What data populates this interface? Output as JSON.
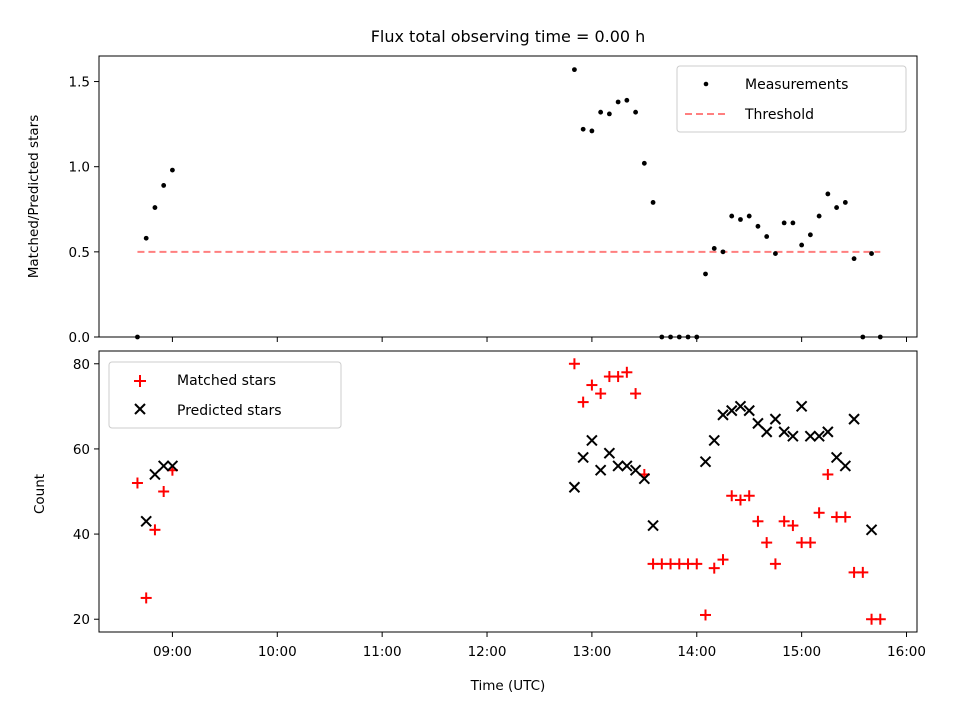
{
  "chart_data": [
    {
      "type": "scatter",
      "title": "Flux total observing time = 0.00 h",
      "xlabel": "",
      "ylabel": "Matched/Predicted stars",
      "xlim": [
        "08:18",
        "16:06"
      ],
      "ylim": [
        0,
        1.65
      ],
      "yticks": [
        0.0,
        0.5,
        1.0,
        1.5
      ],
      "ytick_labels": [
        "0.0",
        "0.5",
        "1.0",
        "1.5"
      ],
      "legend_position": "top-right",
      "series": [
        {
          "name": "Measurements",
          "marker": "dot",
          "color": "#000000",
          "points": [
            [
              "08:40",
              0.0
            ],
            [
              "08:45",
              0.58
            ],
            [
              "08:50",
              0.76
            ],
            [
              "08:55",
              0.89
            ],
            [
              "09:00",
              0.98
            ],
            [
              "12:50",
              1.57
            ],
            [
              "12:55",
              1.22
            ],
            [
              "13:00",
              1.21
            ],
            [
              "13:05",
              1.32
            ],
            [
              "13:10",
              1.31
            ],
            [
              "13:15",
              1.38
            ],
            [
              "13:20",
              1.39
            ],
            [
              "13:25",
              1.32
            ],
            [
              "13:30",
              1.02
            ],
            [
              "13:35",
              0.79
            ],
            [
              "13:40",
              0.0
            ],
            [
              "13:45",
              0.0
            ],
            [
              "13:50",
              0.0
            ],
            [
              "13:55",
              0.0
            ],
            [
              "14:00",
              0.0
            ],
            [
              "14:05",
              0.37
            ],
            [
              "14:10",
              0.52
            ],
            [
              "14:15",
              0.5
            ],
            [
              "14:20",
              0.71
            ],
            [
              "14:25",
              0.69
            ],
            [
              "14:30",
              0.71
            ],
            [
              "14:35",
              0.65
            ],
            [
              "14:40",
              0.59
            ],
            [
              "14:45",
              0.49
            ],
            [
              "14:50",
              0.67
            ],
            [
              "14:55",
              0.67
            ],
            [
              "15:00",
              0.54
            ],
            [
              "15:05",
              0.6
            ],
            [
              "15:10",
              0.71
            ],
            [
              "15:15",
              0.84
            ],
            [
              "15:20",
              0.76
            ],
            [
              "15:25",
              0.79
            ],
            [
              "15:30",
              0.46
            ],
            [
              "15:35",
              0.0
            ],
            [
              "15:40",
              0.49
            ],
            [
              "15:45",
              0.0
            ]
          ]
        },
        {
          "name": "Threshold",
          "type": "line",
          "style": "dashed",
          "color": "#ff7f7f",
          "points": [
            [
              "08:40",
              0.5
            ],
            [
              "15:45",
              0.5
            ]
          ]
        }
      ]
    },
    {
      "type": "scatter",
      "title": "",
      "xlabel": "Time (UTC)",
      "ylabel": "Count",
      "xlim": [
        "08:18",
        "16:06"
      ],
      "ylim": [
        17,
        83
      ],
      "yticks": [
        20,
        40,
        60,
        80
      ],
      "ytick_labels": [
        "20",
        "40",
        "60",
        "80"
      ],
      "xticks": [
        "09:00",
        "10:00",
        "11:00",
        "12:00",
        "13:00",
        "14:00",
        "15:00",
        "16:00"
      ],
      "legend_position": "top-left",
      "series": [
        {
          "name": "Matched stars",
          "marker": "plus",
          "color": "#ff0000",
          "points": [
            [
              "08:40",
              52
            ],
            [
              "08:45",
              25
            ],
            [
              "08:50",
              41
            ],
            [
              "08:55",
              50
            ],
            [
              "09:00",
              55
            ],
            [
              "12:50",
              80
            ],
            [
              "12:55",
              71
            ],
            [
              "13:00",
              75
            ],
            [
              "13:05",
              73
            ],
            [
              "13:10",
              77
            ],
            [
              "13:15",
              77
            ],
            [
              "13:20",
              78
            ],
            [
              "13:25",
              73
            ],
            [
              "13:30",
              54
            ],
            [
              "13:35",
              33
            ],
            [
              "13:40",
              33
            ],
            [
              "13:45",
              33
            ],
            [
              "13:50",
              33
            ],
            [
              "13:55",
              33
            ],
            [
              "14:00",
              33
            ],
            [
              "14:05",
              21
            ],
            [
              "14:10",
              32
            ],
            [
              "14:15",
              34
            ],
            [
              "14:20",
              49
            ],
            [
              "14:25",
              48
            ],
            [
              "14:30",
              49
            ],
            [
              "14:35",
              43
            ],
            [
              "14:40",
              38
            ],
            [
              "14:45",
              33
            ],
            [
              "14:50",
              43
            ],
            [
              "14:55",
              42
            ],
            [
              "15:00",
              38
            ],
            [
              "15:05",
              38
            ],
            [
              "15:10",
              45
            ],
            [
              "15:15",
              54
            ],
            [
              "15:20",
              44
            ],
            [
              "15:25",
              44
            ],
            [
              "15:30",
              31
            ],
            [
              "15:35",
              31
            ],
            [
              "15:40",
              20
            ],
            [
              "15:45",
              20
            ]
          ]
        },
        {
          "name": "Predicted stars",
          "marker": "x",
          "color": "#000000",
          "points": [
            [
              "08:45",
              43
            ],
            [
              "08:50",
              54
            ],
            [
              "08:55",
              56
            ],
            [
              "09:00",
              56
            ],
            [
              "12:50",
              51
            ],
            [
              "12:55",
              58
            ],
            [
              "13:00",
              62
            ],
            [
              "13:05",
              55
            ],
            [
              "13:10",
              59
            ],
            [
              "13:15",
              56
            ],
            [
              "13:20",
              56
            ],
            [
              "13:25",
              55
            ],
            [
              "13:30",
              53
            ],
            [
              "13:35",
              42
            ],
            [
              "14:05",
              57
            ],
            [
              "14:10",
              62
            ],
            [
              "14:15",
              68
            ],
            [
              "14:20",
              69
            ],
            [
              "14:25",
              70
            ],
            [
              "14:30",
              69
            ],
            [
              "14:35",
              66
            ],
            [
              "14:40",
              64
            ],
            [
              "14:45",
              67
            ],
            [
              "14:50",
              64
            ],
            [
              "14:55",
              63
            ],
            [
              "15:00",
              70
            ],
            [
              "15:05",
              63
            ],
            [
              "15:10",
              63
            ],
            [
              "15:15",
              64
            ],
            [
              "15:20",
              58
            ],
            [
              "15:25",
              56
            ],
            [
              "15:30",
              67
            ],
            [
              "15:40",
              41
            ]
          ]
        }
      ]
    }
  ]
}
